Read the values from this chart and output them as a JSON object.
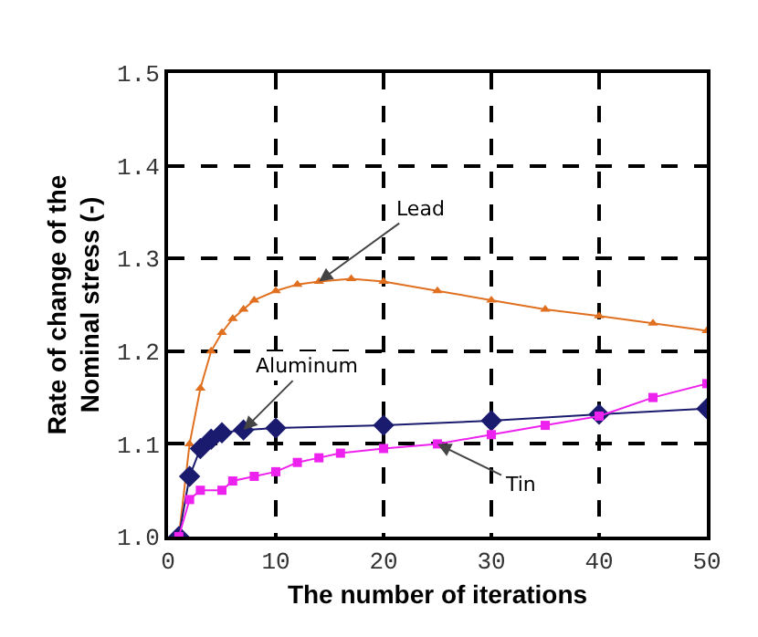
{
  "chart_data": {
    "type": "line",
    "xlabel": "The number of iterations",
    "ylabel": "Rate of change of the\nNominal stress (-)",
    "xlim": [
      0,
      50
    ],
    "xticks": [
      0,
      10,
      20,
      30,
      40,
      50
    ],
    "ylim": [
      1.0,
      1.5
    ],
    "yticks": [
      {
        "value": 1.0,
        "label": "1.0"
      },
      1.1,
      1.2,
      1.3,
      1.4,
      {
        "value": 1.5,
        "label": "1.5"
      }
    ],
    "grid": true,
    "series": [
      {
        "name": "Lead",
        "color": "#e07020",
        "marker": "triangle",
        "x": [
          1,
          2,
          3,
          4,
          5,
          6,
          7,
          8,
          10,
          12,
          14,
          17,
          20,
          25,
          30,
          35,
          40,
          45,
          50
        ],
        "values": [
          1.0,
          1.1,
          1.16,
          1.2,
          1.22,
          1.235,
          1.245,
          1.255,
          1.265,
          1.272,
          1.275,
          1.278,
          1.275,
          1.265,
          1.255,
          1.245,
          1.238,
          1.23,
          1.222
        ]
      },
      {
        "name": "Aluminum",
        "color": "#1a1a6e",
        "marker": "diamond",
        "x": [
          1,
          2,
          3,
          4,
          5,
          7,
          10,
          20,
          30,
          40,
          50
        ],
        "values": [
          1.0,
          1.065,
          1.095,
          1.105,
          1.112,
          1.115,
          1.117,
          1.12,
          1.125,
          1.132,
          1.138
        ]
      },
      {
        "name": "Tin",
        "color": "#ee22ee",
        "marker": "square",
        "x": [
          1,
          2,
          3,
          5,
          6,
          8,
          10,
          12,
          14,
          16,
          20,
          25,
          30,
          35,
          40,
          45,
          50
        ],
        "values": [
          1.0,
          1.04,
          1.05,
          1.05,
          1.06,
          1.065,
          1.07,
          1.08,
          1.085,
          1.09,
          1.095,
          1.1,
          1.11,
          1.12,
          1.13,
          1.15,
          1.165
        ]
      }
    ]
  }
}
